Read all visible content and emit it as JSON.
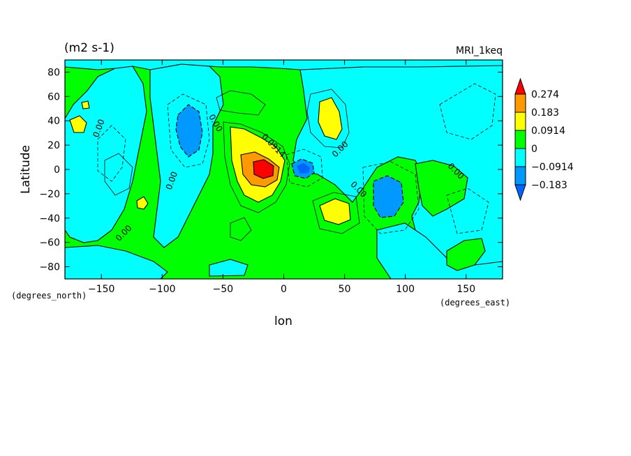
{
  "chart_data": {
    "type": "heatmap",
    "subtype": "filled-contour-map",
    "title_left": "(m2 s-1)",
    "title_right": "MRI_1keq",
    "xlabel": "lon",
    "ylabel": "Latitude",
    "x_units": "(degrees_east)",
    "y_units": "(degrees_north)",
    "xlim": [
      -180,
      180
    ],
    "ylim": [
      -90,
      90
    ],
    "x_ticks": [
      -150,
      -100,
      -50,
      0,
      50,
      100,
      150
    ],
    "y_ticks": [
      -80,
      -60,
      -40,
      -20,
      0,
      20,
      40,
      60,
      80
    ],
    "colorbar": {
      "levels": [
        "0.274",
        "0.183",
        "0.0914",
        "0",
        "-0.0914",
        "-0.183"
      ],
      "colors": [
        "#ff0000",
        "#ff9900",
        "#ffff00",
        "#00ff00",
        "#00ffff",
        "#0099ff",
        "#0066ff"
      ],
      "extend": "both"
    },
    "contour_labels": [
      "0.00",
      "0.00",
      "0.00",
      "0.0914",
      "0.00",
      "0.00",
      "0.00",
      "0.00"
    ],
    "features": [
      {
        "kind": "positive-max",
        "lon": -18,
        "lat": 2,
        "level": "0.274"
      },
      {
        "kind": "negative-min",
        "lon": 15,
        "lat": 0,
        "level": "-0.183"
      },
      {
        "kind": "negative",
        "lon": -78,
        "lat": 30,
        "level": "-0.0914"
      },
      {
        "kind": "negative",
        "lon": 82,
        "lat": -22,
        "level": "-0.0914"
      },
      {
        "kind": "positive",
        "lon": 40,
        "lat": 40,
        "level": "0.0914"
      },
      {
        "kind": "positive",
        "lon": 40,
        "lat": -32,
        "level": "0.0914"
      }
    ]
  }
}
